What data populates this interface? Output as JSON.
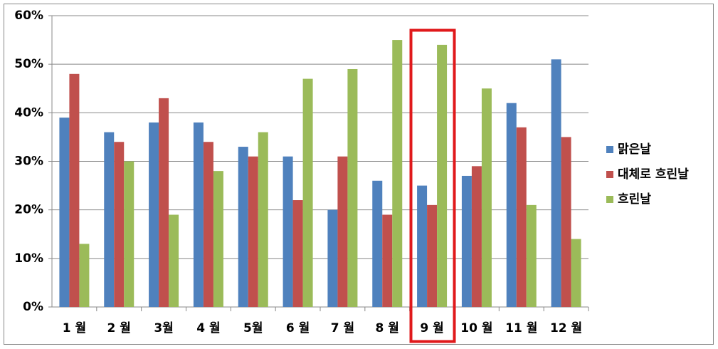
{
  "chart_data": {
    "type": "bar",
    "categories": [
      "1 월",
      "2 월",
      "3월",
      "4 월",
      "5월",
      "6 월",
      "7 월",
      "8 월",
      "9 월",
      "10 월",
      "11 월",
      "12 월"
    ],
    "series": [
      {
        "name": "맑은날",
        "color": "#4f81bd",
        "values": [
          39,
          36,
          38,
          38,
          33,
          31,
          20,
          26,
          25,
          27,
          42,
          51
        ]
      },
      {
        "name": "대체로 흐린날",
        "color": "#c0504d",
        "values": [
          48,
          34,
          43,
          34,
          31,
          22,
          31,
          19,
          21,
          29,
          37,
          35
        ]
      },
      {
        "name": "흐린날",
        "color": "#9bbb59",
        "values": [
          13,
          30,
          19,
          28,
          36,
          47,
          49,
          55,
          54,
          45,
          21,
          14
        ]
      }
    ],
    "ylim": [
      0,
      60
    ],
    "yticks": [
      {
        "value": 0,
        "label": "0%"
      },
      {
        "value": 10,
        "label": "10%"
      },
      {
        "value": 20,
        "label": "20%"
      },
      {
        "value": 30,
        "label": "30%"
      },
      {
        "value": 40,
        "label": "40%"
      },
      {
        "value": 50,
        "label": "50%"
      },
      {
        "value": 60,
        "label": "60%"
      }
    ],
    "grid": true,
    "legend": "right"
  }
}
